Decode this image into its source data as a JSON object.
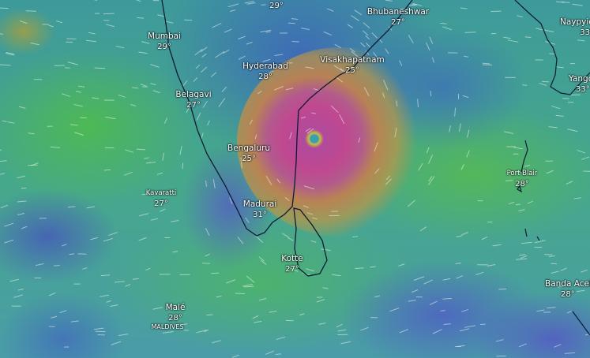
{
  "map": {
    "layer": "wind",
    "colors": {
      "calm_blue": "#4a6fd0",
      "moderate_green": "#4fb060",
      "strong_orange": "#c09050",
      "extreme_magenta": "#c04890",
      "coastline": "#0d1b33"
    },
    "cities": [
      {
        "name": "",
        "temp": "29°"
      },
      {
        "name": "Bhubaneshwar",
        "temp": "27°"
      },
      {
        "name": "Mumbai",
        "temp": "29°"
      },
      {
        "name": "Hyderabad",
        "temp": "28°"
      },
      {
        "name": "Visakhapatnam",
        "temp": "25°"
      },
      {
        "name": "Belagavi",
        "temp": "27°"
      },
      {
        "name": "Bengaluru",
        "temp": "25°"
      },
      {
        "name": "Kavaratti",
        "temp": "27°"
      },
      {
        "name": "Madurai",
        "temp": "31°"
      },
      {
        "name": "Kotte",
        "temp": "27°"
      },
      {
        "name": "Malé",
        "temp": "28°"
      },
      {
        "name": "Port Blair",
        "temp": "28°"
      },
      {
        "name": "Naypyid",
        "temp": "33°"
      },
      {
        "name": "Yango",
        "temp": "33°"
      },
      {
        "name": "Banda Aceh",
        "temp": "28°"
      }
    ],
    "country_label": "MALDIVES"
  }
}
